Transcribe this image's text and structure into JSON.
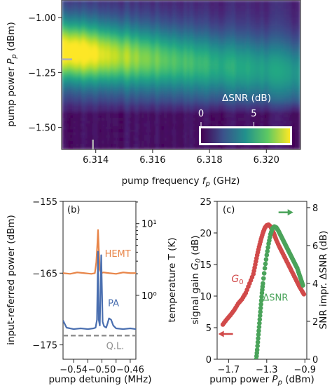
{
  "chart_data": [
    {
      "panel": "a",
      "type": "heatmap",
      "xlabel": "pump frequency f_p (GHz)",
      "ylabel": "pump power P_p (dBm)",
      "xlim": [
        6.3128,
        6.3212
      ],
      "ylim": [
        -1.6,
        -0.92
      ],
      "xticks": [
        6.314,
        6.316,
        6.318,
        6.32
      ],
      "xtick_labels": [
        "6.314",
        "6.316",
        "6.318",
        "6.320"
      ],
      "yticks": [
        -1.0,
        -1.25,
        -1.5
      ],
      "ytick_labels": [
        "−1.00",
        "−1.25",
        "−1.50"
      ],
      "colorbar": {
        "label": "ΔSNR (dB)",
        "range": [
          0,
          8
        ],
        "ticks": [
          0,
          5
        ],
        "tick_labels": [
          "0",
          "5"
        ],
        "colormap": "viridis"
      },
      "peak": {
        "x": 6.3135,
        "y": -1.19,
        "value": 8.3
      },
      "markers": [
        {
          "axis": "y",
          "value": -1.19,
          "color": "#b0b0b0"
        },
        {
          "axis": "x",
          "value": 6.3139,
          "color": "#b0b0b0"
        }
      ]
    },
    {
      "panel": "b",
      "type": "line",
      "panel_label": "(b)",
      "xlabel": "pump detuning (MHz)",
      "ylabel": "input-referred power (dBm)",
      "ylabel_right": "temperature T (K)",
      "xlim": [
        -0.555,
        -0.452
      ],
      "ylim": [
        -177,
        -155
      ],
      "xticks": [
        -0.54,
        -0.52,
        -0.5,
        -0.48,
        -0.46
      ],
      "xtick_labels": [
        "−0.54",
        "",
        "−0.50",
        "",
        "−0.46"
      ],
      "yticks": [
        -155,
        -165,
        -175
      ],
      "ytick_labels": [
        "−155",
        "−165",
        "−175"
      ],
      "y2_scale": "log",
      "y2_ticks": [
        {
          "value": 10,
          "label": "10¹",
          "left_dbm": -158.1
        },
        {
          "value": 1,
          "label": "10⁰",
          "left_dbm": -168.1
        }
      ],
      "series": [
        {
          "name": "HEMT",
          "color": "#e8864a",
          "x": [
            -0.555,
            -0.545,
            -0.535,
            -0.525,
            -0.515,
            -0.51,
            -0.508,
            -0.5065,
            -0.5055,
            -0.5045,
            -0.503,
            -0.501,
            -0.498,
            -0.49,
            -0.48,
            -0.47,
            -0.46,
            -0.452
          ],
          "y": [
            -165.0,
            -165.1,
            -164.9,
            -165.0,
            -165.1,
            -165.0,
            -163.5,
            -161.0,
            -159.0,
            -161.5,
            -164.5,
            -165.0,
            -164.9,
            -165.0,
            -165.1,
            -164.9,
            -165.0,
            -165.0
          ]
        },
        {
          "name": "PA",
          "color": "#4a6fb0",
          "x": [
            -0.555,
            -0.55,
            -0.54,
            -0.53,
            -0.52,
            -0.512,
            -0.509,
            -0.507,
            -0.5055,
            -0.5045,
            -0.503,
            -0.501,
            -0.499,
            -0.497,
            -0.494,
            -0.492,
            -0.49,
            -0.487,
            -0.484,
            -0.48,
            -0.47,
            -0.46,
            -0.452
          ],
          "y": [
            -171.6,
            -172.6,
            -172.8,
            -172.7,
            -172.8,
            -172.7,
            -172.6,
            -171.5,
            -162.0,
            -171.5,
            -172.3,
            -162.5,
            -171.8,
            -172.4,
            -172.6,
            -172.0,
            -171.3,
            -171.5,
            -172.3,
            -172.7,
            -172.8,
            -172.7,
            -172.8
          ]
        },
        {
          "name": "Q.L.",
          "color": "#909090",
          "dashed": true,
          "x": [
            -0.555,
            -0.452
          ],
          "y": [
            -173.7,
            -173.7
          ]
        }
      ]
    },
    {
      "panel": "c",
      "type": "scatter",
      "panel_label": "(c)",
      "xlabel": "pump power P_p (dBm)",
      "ylabel": "signal gain G_0 (dB)",
      "ylabel_right": "SNR impr. ΔSNR (dB)",
      "xlim": [
        -1.82,
        -0.88
      ],
      "ylim": [
        0,
        25
      ],
      "y2lim": [
        0,
        8.33
      ],
      "xticks": [
        -1.7,
        -1.3,
        -0.9
      ],
      "xtick_labels": [
        "−1.7",
        "−1.3",
        "−0.9"
      ],
      "yticks": [
        0,
        5,
        10,
        15,
        20,
        25
      ],
      "y2_ticks": [
        0,
        2,
        4,
        6,
        8
      ],
      "series": [
        {
          "name": "G_0",
          "label": "G₀",
          "color": "#d14a4a",
          "axis": "left",
          "x": [
            -1.76,
            -1.72,
            -1.68,
            -1.64,
            -1.6,
            -1.56,
            -1.52,
            -1.48,
            -1.44,
            -1.42,
            -1.4,
            -1.38,
            -1.36,
            -1.34,
            -1.32,
            -1.3,
            -1.28,
            -1.26,
            -1.24,
            -1.22,
            -1.2,
            -1.17,
            -1.14,
            -1.11,
            -1.08,
            -1.05,
            -1.02,
            -0.99,
            -0.96,
            -0.93,
            -0.91
          ],
          "y": [
            5.5,
            6.3,
            7.0,
            7.8,
            8.8,
            9.5,
            10.5,
            12.0,
            13.5,
            15.0,
            16.5,
            17.8,
            19.0,
            20.0,
            20.8,
            21.2,
            21.3,
            21.0,
            20.4,
            19.7,
            18.9,
            17.9,
            17.0,
            16.1,
            15.2,
            14.3,
            13.4,
            12.5,
            11.6,
            10.8,
            10.3
          ]
        },
        {
          "name": "ΔSNR",
          "color": "#4aa35a",
          "axis": "right",
          "x": [
            -1.41,
            -1.4,
            -1.39,
            -1.38,
            -1.37,
            -1.36,
            -1.35,
            -1.34,
            -1.32,
            -1.3,
            -1.28,
            -1.26,
            -1.24,
            -1.22,
            -1.2,
            -1.18,
            -1.16,
            -1.14,
            -1.12,
            -1.1,
            -1.08,
            -1.06,
            -1.04,
            -1.02,
            -1.0,
            -0.98,
            -0.96,
            -0.94,
            -0.92
          ],
          "y": [
            0.0,
            0.5,
            1.1,
            1.7,
            2.3,
            2.9,
            3.5,
            4.0,
            4.8,
            5.5,
            6.1,
            6.6,
            6.9,
            7.0,
            6.95,
            6.8,
            6.6,
            6.4,
            6.2,
            6.0,
            5.8,
            5.6,
            5.4,
            5.2,
            5.0,
            4.8,
            4.5,
            4.2,
            3.9
          ]
        }
      ],
      "arrows": [
        {
          "series": "G_0",
          "direction": "left",
          "x": -1.72,
          "y": 4.0
        },
        {
          "series": "ΔSNR",
          "direction": "right",
          "x": -1.11,
          "y": 7.75
        }
      ]
    }
  ]
}
